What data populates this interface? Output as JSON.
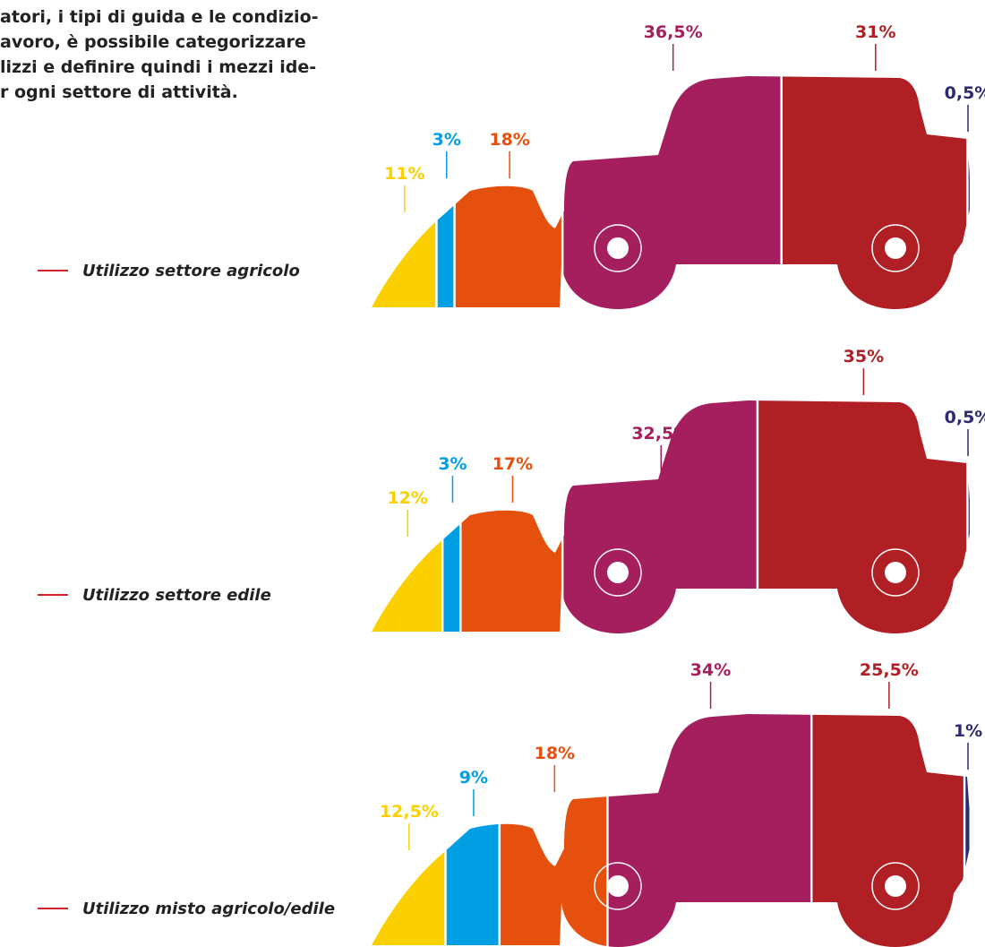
{
  "intro": [
    "atori, i tipi di guida e le condizio-",
    "avoro, è possibile categorizzare",
    "lizzi e definire quindi i mezzi ide-",
    "r ogni settore di attività."
  ],
  "chart_data": [
    {
      "type": "pictogram",
      "title": "Utilizzo settore agricolo",
      "values": [
        11,
        3,
        18,
        36.5,
        31,
        0.5
      ],
      "value_labels": [
        "11%",
        "3%",
        "18%",
        "36,5%",
        "31%",
        "0,5%"
      ],
      "colors": [
        "#fcd000",
        "#009fe3",
        "#e5500f",
        "#a51e5e",
        "#b01f24",
        "#2b2a72"
      ]
    },
    {
      "type": "pictogram",
      "title": "Utilizzo settore edile",
      "values": [
        12,
        3,
        17,
        32.5,
        35,
        0.5
      ],
      "value_labels": [
        "12%",
        "3%",
        "17%",
        "32,5%",
        "35%",
        "0,5%"
      ],
      "colors": [
        "#fcd000",
        "#009fe3",
        "#e5500f",
        "#a51e5e",
        "#b01f24",
        "#2b2a72"
      ]
    },
    {
      "type": "pictogram",
      "title": "Utilizzo misto agricolo/edile",
      "values": [
        12.5,
        9,
        18,
        34,
        25.5,
        1
      ],
      "value_labels": [
        "12,5%",
        "9%",
        "18%",
        "34%",
        "25,5%",
        "1%"
      ],
      "colors": [
        "#fcd000",
        "#009fe3",
        "#e5500f",
        "#a51e5e",
        "#b01f24",
        "#2b2a72"
      ]
    }
  ]
}
